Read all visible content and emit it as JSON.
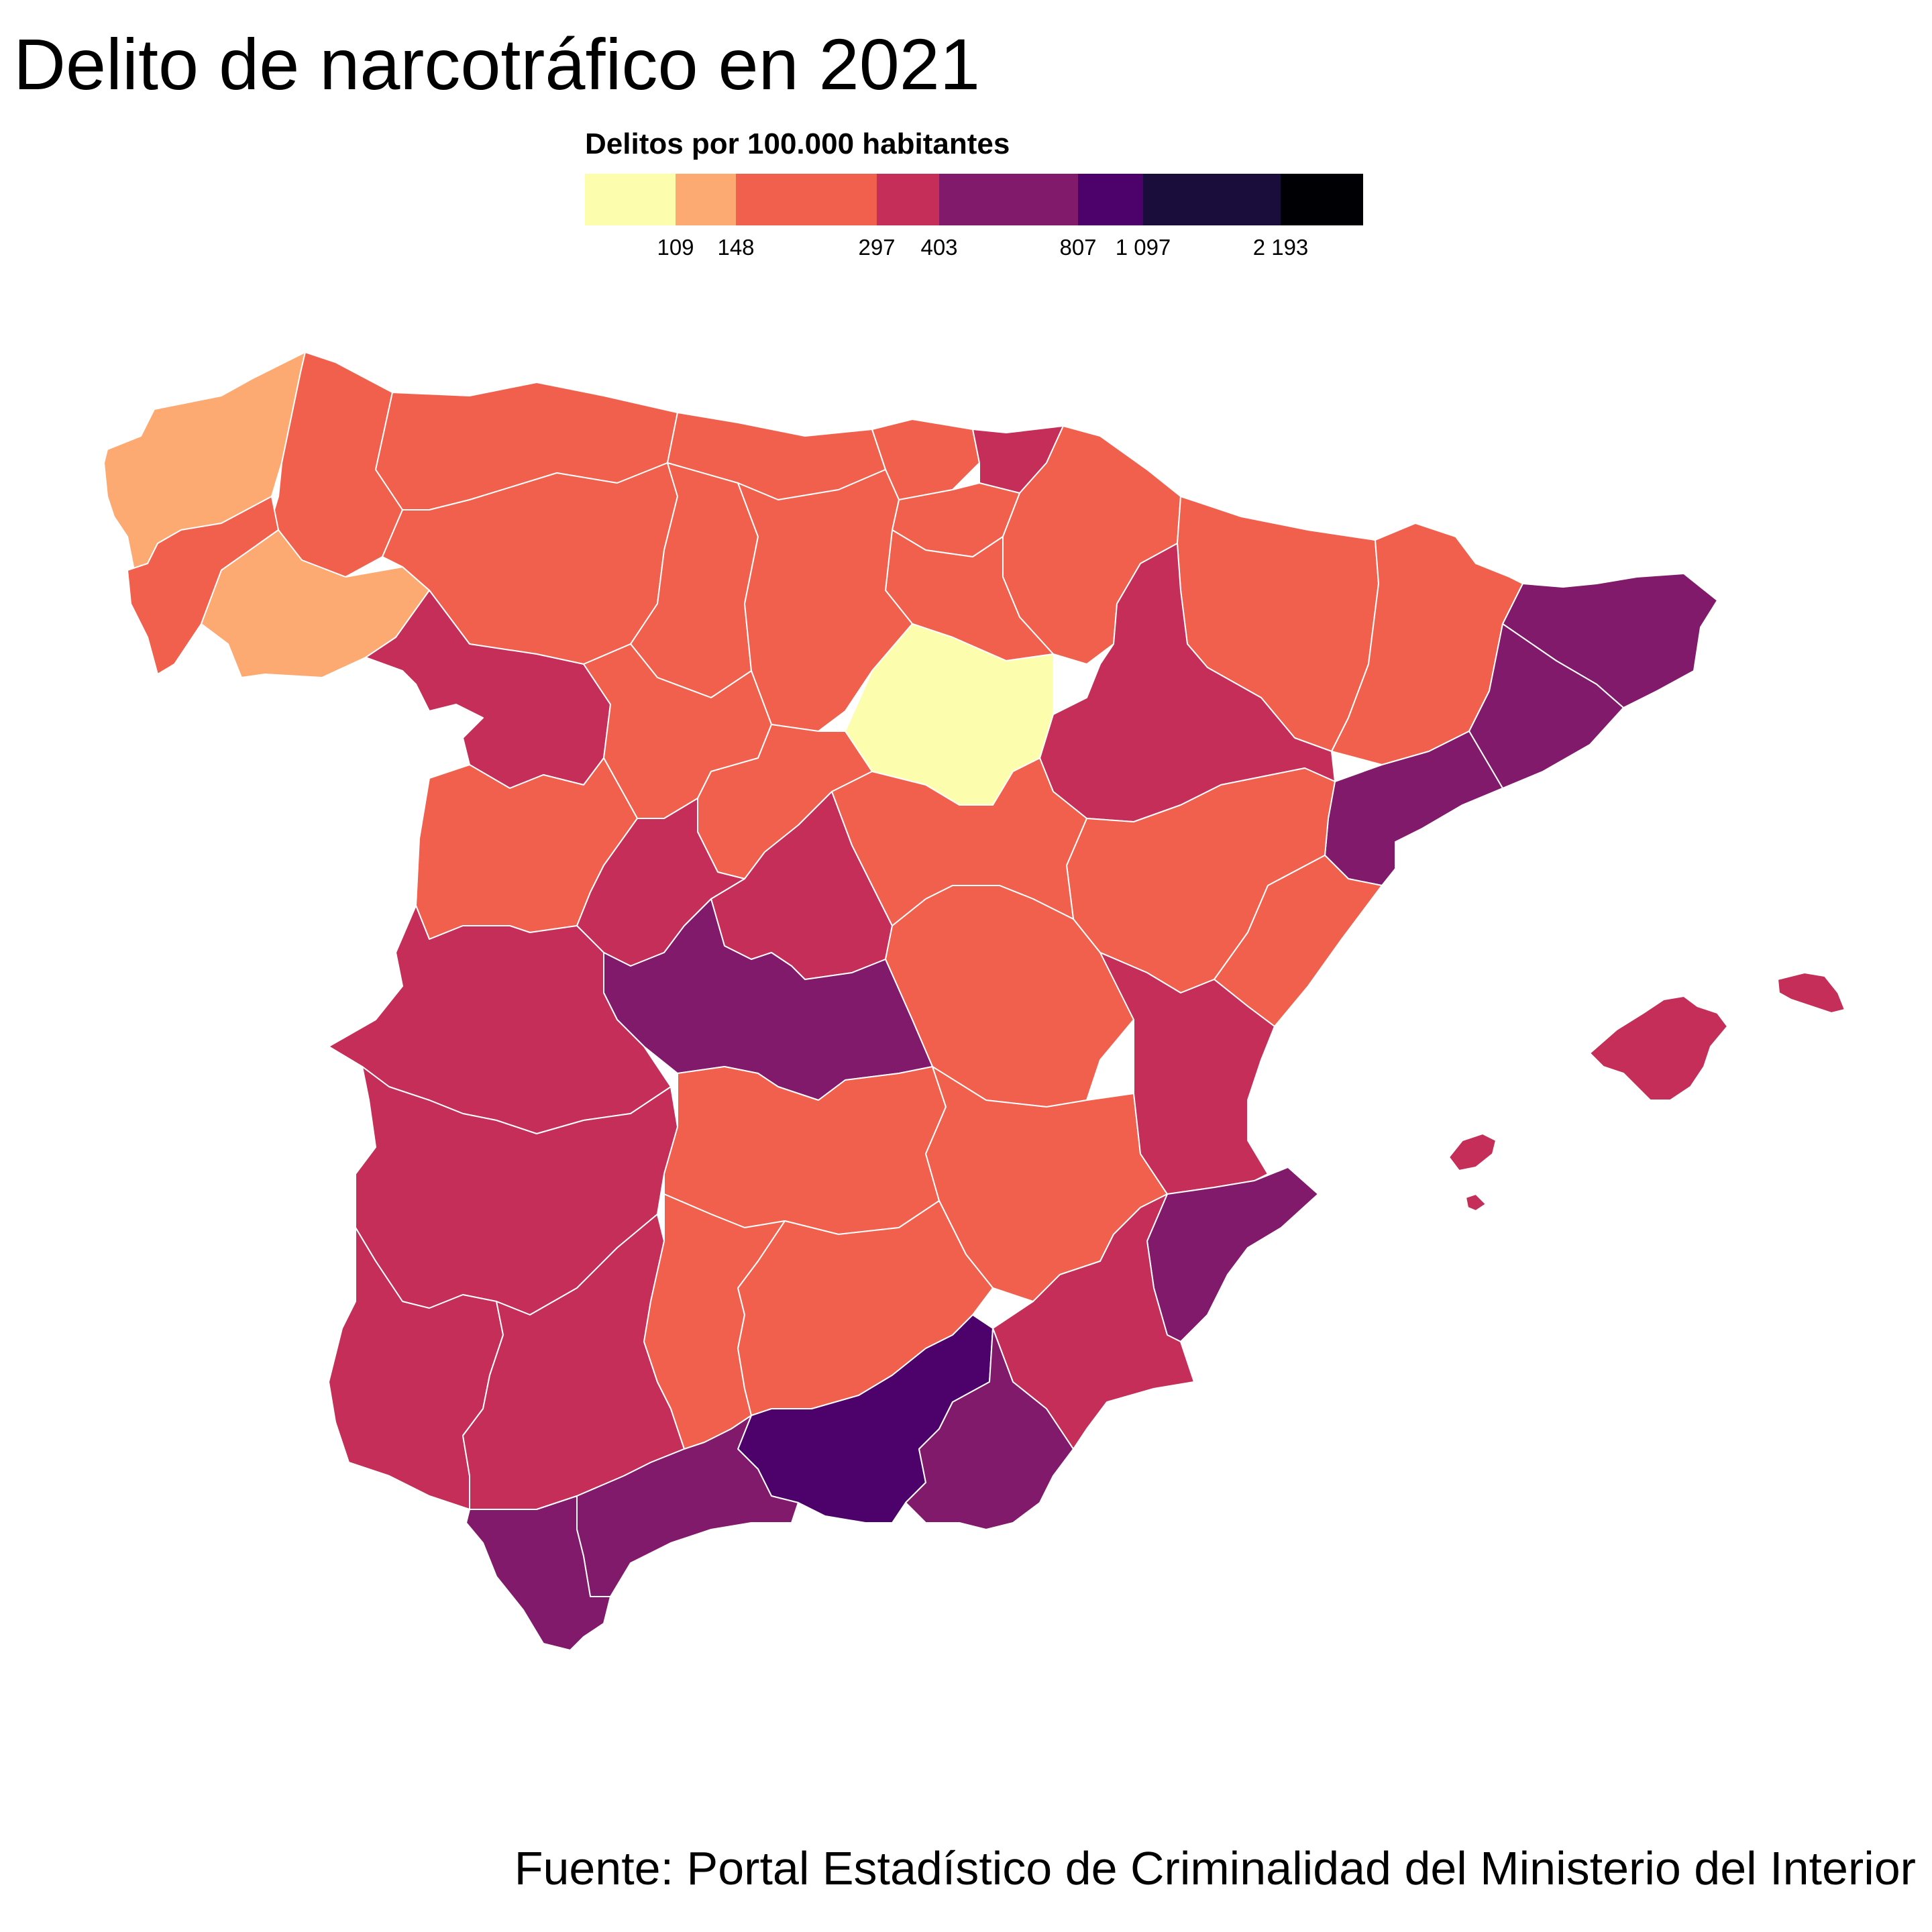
{
  "title": "Delito de narcotráfico en 2021",
  "source": "Fuente: Portal Estadístico de Criminalidad del Ministerio del Interior",
  "legend": {
    "title": "Delitos por 100.000 habitantes",
    "labels": [
      "109",
      "148",
      "297",
      "403",
      "807",
      "1 097",
      "2 193"
    ],
    "colors": [
      "#FCFDAD",
      "#FCAA72",
      "#F1604D",
      "#C42E58",
      "#821A6C",
      "#4C026A",
      "#1A0D3C",
      "#000004"
    ]
  },
  "chart_data": {
    "type": "choropleth",
    "title": "Delito de narcotráfico en 2021",
    "legend_title": "Delitos por 100.000 habitantes",
    "bin_breaks": [
      109,
      148,
      297,
      403,
      807,
      1097,
      2193
    ],
    "bins": [
      {
        "range": "< 109",
        "color": "#FCFDAD"
      },
      {
        "range": "109 – 148",
        "color": "#FCAA72"
      },
      {
        "range": "148 – 297",
        "color": "#F1604D"
      },
      {
        "range": "297 – 403",
        "color": "#C42E58"
      },
      {
        "range": "403 – 807",
        "color": "#821A6C"
      },
      {
        "range": "807 – 1 097",
        "color": "#4C026A"
      },
      {
        "range": "1 097 – 2 193",
        "color": "#1A0D3C"
      },
      {
        "range": "> 2 193",
        "color": "#000004"
      }
    ],
    "regions": [
      {
        "name": "A Coruña",
        "bin": 1
      },
      {
        "name": "Lugo",
        "bin": 2
      },
      {
        "name": "Pontevedra",
        "bin": 2
      },
      {
        "name": "Ourense",
        "bin": 1
      },
      {
        "name": "Asturias",
        "bin": 2
      },
      {
        "name": "Cantabria",
        "bin": 2
      },
      {
        "name": "Bizkaia",
        "bin": 2
      },
      {
        "name": "Gipuzkoa",
        "bin": 3
      },
      {
        "name": "Araba",
        "bin": 2
      },
      {
        "name": "Navarra",
        "bin": 2
      },
      {
        "name": "La Rioja",
        "bin": 2
      },
      {
        "name": "Huesca",
        "bin": 2
      },
      {
        "name": "Lleida",
        "bin": 2
      },
      {
        "name": "Girona",
        "bin": 4
      },
      {
        "name": "Barcelona",
        "bin": 4
      },
      {
        "name": "Tarragona",
        "bin": 4
      },
      {
        "name": "Zaragoza",
        "bin": 3
      },
      {
        "name": "Teruel",
        "bin": 2
      },
      {
        "name": "Castellón",
        "bin": 2
      },
      {
        "name": "León",
        "bin": 2
      },
      {
        "name": "Palencia",
        "bin": 2
      },
      {
        "name": "Burgos",
        "bin": 2
      },
      {
        "name": "Soria",
        "bin": 0
      },
      {
        "name": "Zamora",
        "bin": 3
      },
      {
        "name": "Valladolid",
        "bin": 2
      },
      {
        "name": "Segovia",
        "bin": 2
      },
      {
        "name": "Salamanca",
        "bin": 2
      },
      {
        "name": "Ávila",
        "bin": 3
      },
      {
        "name": "Madrid",
        "bin": 3
      },
      {
        "name": "Guadalajara",
        "bin": 2
      },
      {
        "name": "Cuenca",
        "bin": 2
      },
      {
        "name": "Toledo",
        "bin": 4
      },
      {
        "name": "Cáceres",
        "bin": 3
      },
      {
        "name": "Badajoz",
        "bin": 3
      },
      {
        "name": "Ciudad Real",
        "bin": 2
      },
      {
        "name": "Albacete",
        "bin": 2
      },
      {
        "name": "Valencia",
        "bin": 3
      },
      {
        "name": "Alicante",
        "bin": 4
      },
      {
        "name": "Murcia",
        "bin": 3
      },
      {
        "name": "Huelva",
        "bin": 3
      },
      {
        "name": "Sevilla",
        "bin": 3
      },
      {
        "name": "Córdoba",
        "bin": 2
      },
      {
        "name": "Jaén",
        "bin": 2
      },
      {
        "name": "Granada",
        "bin": 5
      },
      {
        "name": "Almería",
        "bin": 4
      },
      {
        "name": "Málaga",
        "bin": 4
      },
      {
        "name": "Cádiz",
        "bin": 4
      },
      {
        "name": "Illes Balears",
        "bin": 3
      }
    ]
  }
}
